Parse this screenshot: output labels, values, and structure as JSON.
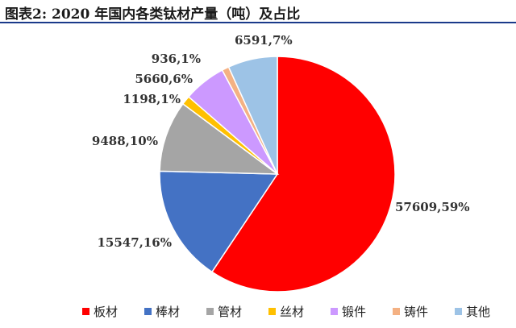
{
  "title": "图表2:   2020 年国内各类钛材产量（吨）及占比",
  "chart_data": {
    "type": "pie",
    "title": "图表2:   2020 年国内各类钛材产量（吨）及占比",
    "legend_position": "bottom",
    "slices": [
      {
        "name": "板材",
        "value": 57609,
        "percent": 59,
        "label": "57609,59%",
        "color": "#ff0000"
      },
      {
        "name": "棒材",
        "value": 15547,
        "percent": 16,
        "label": "15547,16%",
        "color": "#4472c4"
      },
      {
        "name": "管材",
        "value": 9488,
        "percent": 10,
        "label": "9488,10%",
        "color": "#a5a5a5"
      },
      {
        "name": "丝材",
        "value": 1198,
        "percent": 1,
        "label": "1198,1%",
        "color": "#ffc000"
      },
      {
        "name": "锻件",
        "value": 5660,
        "percent": 6,
        "label": "5660,6%",
        "color": "#cc99ff"
      },
      {
        "name": "铸件",
        "value": 936,
        "percent": 1,
        "label": "936,1%",
        "color": "#f4b183"
      },
      {
        "name": "其他",
        "value": 6591,
        "percent": 7,
        "label": "6591,7%",
        "color": "#9dc3e6"
      }
    ]
  }
}
